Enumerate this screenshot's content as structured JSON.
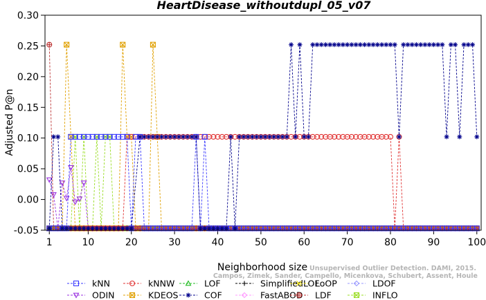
{
  "chart_data": {
    "type": "line",
    "title": "HeartDisease_withoutdupl_05_v07",
    "xlabel": "Neighborhood size",
    "ylabel": "Adjusted P@n",
    "xlim": [
      0,
      101
    ],
    "ylim": [
      -0.05,
      0.3
    ],
    "xticks": [
      "1",
      "10",
      "20",
      "30",
      "40",
      "50",
      "60",
      "70",
      "80",
      "90",
      "100"
    ],
    "yticks": [
      "-0.05",
      "0.00",
      "0.05",
      "0.10",
      "0.15",
      "0.20",
      "0.25",
      "0.30"
    ],
    "grid": false,
    "legend_position": "bottom",
    "watermark": [
      "Unsupervised Outlier Detection. DAMI, 2015.",
      "Campos, Zimek, Sander, Campello, Micenkova, Schubert, Assent, Houle"
    ],
    "series": [
      {
        "name": "kNN",
        "color": "#3a3aff",
        "marker": "square",
        "segments": [
          [
            1,
            2,
            -0.047
          ],
          [
            3,
            5,
            -0.047
          ],
          [
            6,
            19,
            0.102
          ],
          [
            20,
            20,
            -0.047
          ],
          [
            21,
            22,
            0.102
          ],
          [
            23,
            34,
            -0.047
          ],
          [
            35,
            35,
            0.102
          ],
          [
            36,
            36,
            -0.047
          ],
          [
            37,
            37,
            0.102
          ],
          [
            38,
            100,
            -0.047
          ]
        ]
      },
      {
        "name": "kNNW",
        "color": "#e03030",
        "marker": "circle",
        "segments": [
          [
            1,
            18,
            -0.047
          ],
          [
            19,
            80,
            0.102
          ],
          [
            81,
            81,
            -0.047
          ],
          [
            82,
            82,
            0.102
          ],
          [
            83,
            100,
            -0.047
          ]
        ]
      },
      {
        "name": "LOF",
        "color": "#22bb22",
        "marker": "triangle-up",
        "segments": [
          [
            1,
            100,
            -0.047
          ]
        ]
      },
      {
        "name": "SimplifiedLOF",
        "color": "#000000",
        "marker": "plus",
        "segments": [
          [
            1,
            100,
            -0.047
          ]
        ]
      },
      {
        "name": "LoOP",
        "color": "#e6d800",
        "marker": "x",
        "segments": [
          [
            1,
            100,
            -0.047
          ]
        ]
      },
      {
        "name": "LDOF",
        "color": "#9999ff",
        "marker": "diamond",
        "segments": [
          [
            1,
            100,
            -0.047
          ]
        ]
      },
      {
        "name": "ODIN",
        "color": "#9a30e0",
        "marker": "triangle-down",
        "points": [
          [
            1,
            0.032
          ],
          [
            2,
            0.008
          ],
          [
            3,
            -0.047
          ],
          [
            4,
            0.027
          ],
          [
            5,
            0.002
          ],
          [
            6,
            0.052
          ],
          [
            7,
            -0.004
          ],
          [
            8,
            0.001
          ],
          [
            9,
            0.027
          ],
          [
            10,
            -0.047
          ],
          [
            11,
            -0.047
          ],
          [
            100,
            -0.047
          ]
        ]
      },
      {
        "name": "KDEOS",
        "color": "#e0a000",
        "marker": "square-x",
        "points": [
          [
            1,
            -0.047
          ],
          [
            4,
            -0.047
          ],
          [
            5,
            0.252
          ],
          [
            6,
            0.102
          ],
          [
            7,
            -0.047
          ],
          [
            17,
            -0.047
          ],
          [
            18,
            0.252
          ],
          [
            19,
            0.102
          ],
          [
            20,
            0.102
          ],
          [
            21,
            -0.047
          ],
          [
            24,
            -0.047
          ],
          [
            25,
            0.252
          ],
          [
            26,
            0.102
          ],
          [
            27,
            -0.047
          ],
          [
            100,
            -0.047
          ]
        ]
      },
      {
        "name": "COF",
        "color": "#00008b",
        "marker": "asterisk",
        "points": [
          [
            1,
            -0.047
          ],
          [
            2,
            0.102
          ],
          [
            3,
            0.102
          ],
          [
            4,
            -0.047
          ],
          [
            20,
            -0.047
          ],
          [
            22,
            0.102
          ],
          [
            24,
            0.102
          ],
          [
            33,
            0.102
          ],
          [
            35,
            0.102
          ],
          [
            36,
            -0.047
          ],
          [
            42,
            -0.047
          ],
          [
            43,
            0.102
          ],
          [
            44,
            -0.047
          ],
          [
            45,
            0.102
          ],
          [
            56,
            0.102
          ],
          [
            57,
            0.252
          ],
          [
            58,
            0.102
          ],
          [
            59,
            0.252
          ],
          [
            60,
            0.102
          ],
          [
            61,
            0.102
          ],
          [
            62,
            0.252
          ],
          [
            81,
            0.252
          ],
          [
            82,
            0.102
          ],
          [
            83,
            0.252
          ],
          [
            92,
            0.252
          ],
          [
            93,
            0.102
          ],
          [
            94,
            0.252
          ],
          [
            95,
            0.252
          ],
          [
            96,
            0.102
          ],
          [
            97,
            0.252
          ],
          [
            99,
            0.252
          ],
          [
            100,
            0.102
          ]
        ]
      },
      {
        "name": "FastABOD",
        "color": "#ff99ff",
        "marker": "diamond",
        "segments": [
          [
            1,
            100,
            -0.047
          ]
        ]
      },
      {
        "name": "LDF",
        "color": "#bb3030",
        "marker": "circle-plus",
        "points": [
          [
            1,
            0.252
          ],
          [
            2,
            -0.047
          ],
          [
            100,
            -0.047
          ]
        ]
      },
      {
        "name": "INFLO",
        "color": "#99dd22",
        "marker": "square-x",
        "points": [
          [
            1,
            -0.047
          ],
          [
            6,
            -0.047
          ],
          [
            7,
            0.102
          ],
          [
            8,
            -0.047
          ],
          [
            9,
            0.102
          ],
          [
            10,
            -0.047
          ],
          [
            11,
            -0.047
          ],
          [
            12,
            0.102
          ],
          [
            13,
            -0.047
          ],
          [
            14,
            0.102
          ],
          [
            15,
            0.102
          ],
          [
            16,
            -0.047
          ],
          [
            100,
            -0.047
          ]
        ]
      }
    ]
  }
}
